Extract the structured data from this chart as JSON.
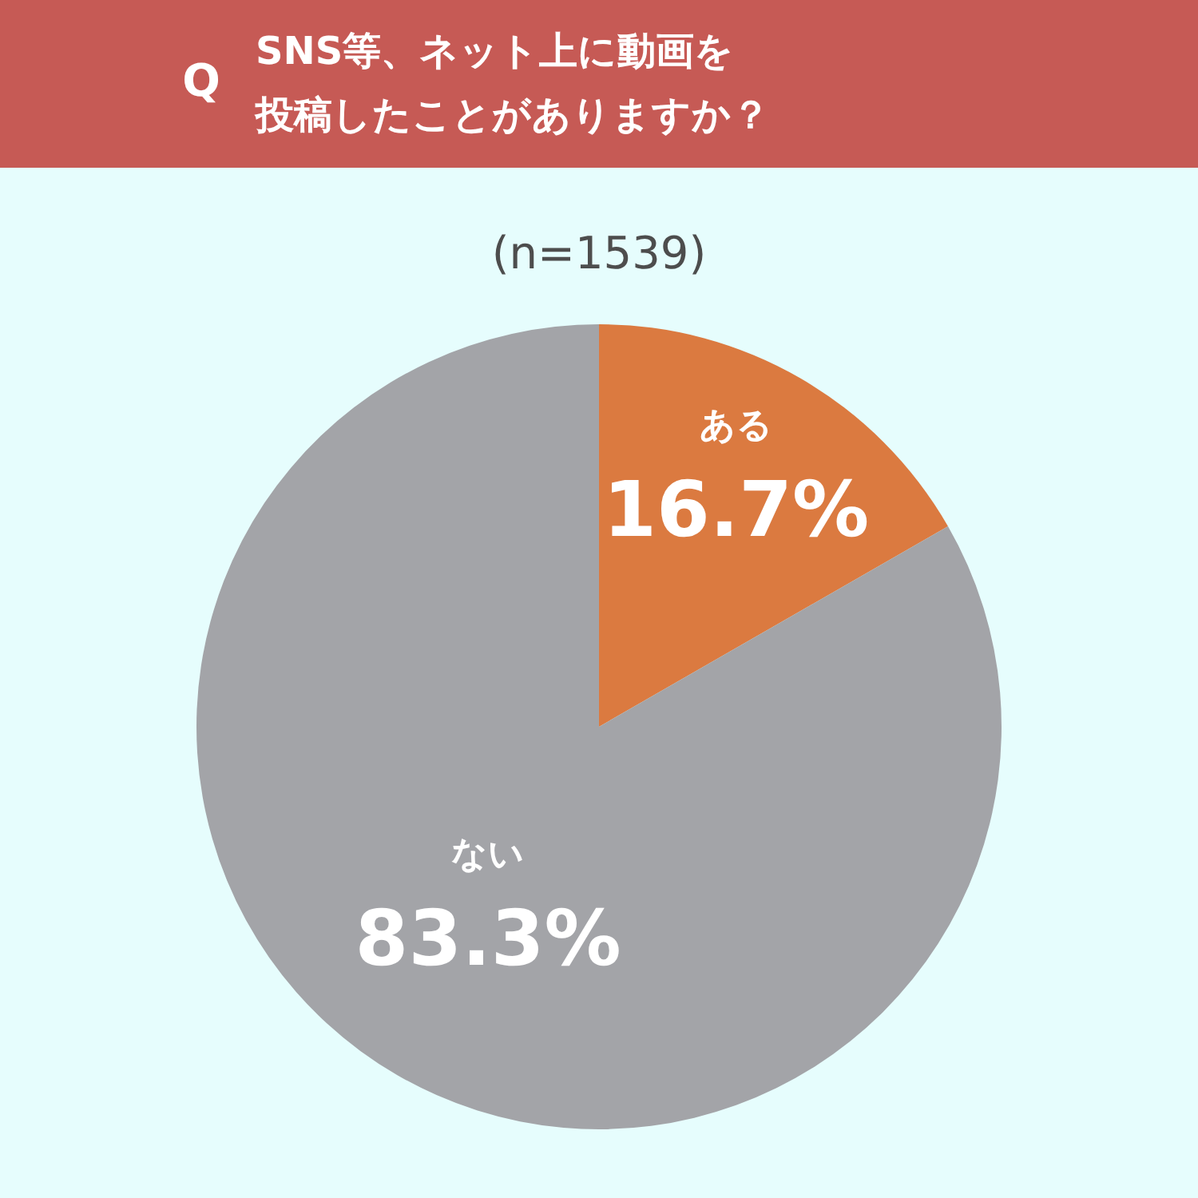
{
  "chart_data": {
    "type": "pie",
    "title": "SNS等、ネット上に動画を投稿したことがありますか？",
    "subtitle": "(n=1539)",
    "annotations": [
      "Q"
    ],
    "categories": [
      "ある",
      "ない"
    ],
    "values": [
      16.7,
      83.3
    ],
    "colors": [
      "#db7a40",
      "#a3a4a8"
    ],
    "value_labels": [
      "16.7%",
      "83.3%"
    ]
  }
}
